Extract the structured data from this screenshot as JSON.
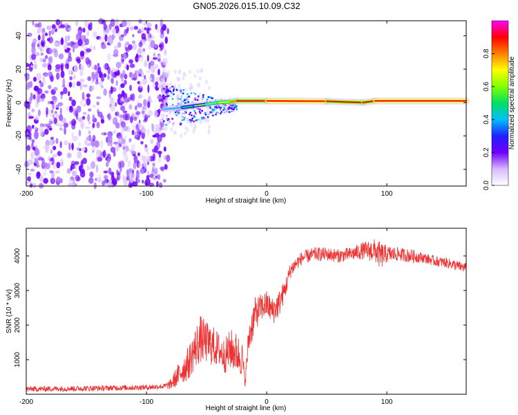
{
  "figure_title": "GN05.2026.015.10.09.C32",
  "chart_data": [
    {
      "type": "heatmap",
      "title": "GN05.2026.015.10.09.C32",
      "xlabel": "Height of straight line (km)",
      "ylabel": "Frequency (Hz)",
      "xlim": [
        -200,
        166
      ],
      "ylim": [
        -50,
        49
      ],
      "xticks": [
        -200,
        -100,
        0,
        100
      ],
      "xtick_labels": [
        "-200",
        "-100",
        "0",
        "100"
      ],
      "yticks": [
        -40,
        -20,
        0,
        20,
        40
      ],
      "ytick_labels": [
        "-40",
        "-20",
        "0",
        "20",
        "40"
      ],
      "noise_region_km": [
        -200,
        -82
      ],
      "turbulent_region_km": [
        -88,
        -25
      ],
      "carrier_line": [
        {
          "x": -85,
          "y": -4,
          "amp": 0.3
        },
        {
          "x": -70,
          "y": -3,
          "amp": 0.45
        },
        {
          "x": -60,
          "y": -2,
          "amp": 0.55
        },
        {
          "x": -50,
          "y": -1,
          "amp": 0.6
        },
        {
          "x": -40,
          "y": 0,
          "amp": 0.65
        },
        {
          "x": -30,
          "y": 0.5,
          "amp": 0.75
        },
        {
          "x": -25,
          "y": 1,
          "amp": 0.85
        },
        {
          "x": 0,
          "y": 1,
          "amp": 0.9
        },
        {
          "x": 50,
          "y": 0.8,
          "amp": 0.9
        },
        {
          "x": 80,
          "y": 0,
          "amp": 0.85
        },
        {
          "x": 90,
          "y": 1,
          "amp": 0.9
        },
        {
          "x": 166,
          "y": 1,
          "amp": 0.95
        }
      ],
      "colorbar": {
        "label": "Normalized spectral amplitude",
        "range": [
          0,
          1
        ],
        "ticks": [
          0.0,
          0.2,
          0.4,
          0.6,
          0.8
        ],
        "tick_labels": [
          "0.0",
          "0.2",
          "0.4",
          "0.6",
          "0.8"
        ],
        "colors": [
          "#ffffff",
          "#d8b8ff",
          "#7000ff",
          "#2020ff",
          "#00c0ff",
          "#00e060",
          "#80ff00",
          "#ffff00",
          "#ff8000",
          "#ff0000",
          "#ff00ff"
        ]
      }
    },
    {
      "type": "line",
      "xlabel": "Height of straight line (km)",
      "ylabel": "SNR (10 * v/v)",
      "xlim": [
        -200,
        166
      ],
      "ylim": [
        0,
        4800
      ],
      "xticks": [
        -200,
        -100,
        0,
        100
      ],
      "xtick_labels": [
        "-200",
        "-100",
        "0",
        "100"
      ],
      "yticks": [
        1000,
        2000,
        3000,
        4000
      ],
      "ytick_labels": [
        "1000",
        "2000",
        "3000",
        "4000"
      ],
      "series": [
        {
          "name": "SNR",
          "color": "#f03030",
          "x": [
            -200,
            -150,
            -100,
            -85,
            -80,
            -75,
            -70,
            -65,
            -60,
            -55,
            -50,
            -45,
            -40,
            -35,
            -30,
            -25,
            -20,
            -18,
            -15,
            -10,
            -5,
            0,
            5,
            10,
            15,
            20,
            25,
            30,
            40,
            50,
            60,
            70,
            80,
            90,
            95,
            100,
            110,
            120,
            130,
            140,
            150,
            160,
            166
          ],
          "y": [
            150,
            170,
            200,
            230,
            280,
            500,
            700,
            900,
            1300,
            1600,
            1500,
            1400,
            1300,
            1100,
            1300,
            1200,
            1000,
            300,
            1600,
            2300,
            2500,
            2600,
            2400,
            2600,
            3000,
            3600,
            3800,
            3950,
            4050,
            4050,
            4000,
            4050,
            4150,
            4150,
            4000,
            4050,
            4050,
            4000,
            3950,
            3850,
            3800,
            3700,
            3650
          ],
          "noise": [
            80,
            80,
            80,
            80,
            150,
            300,
            400,
            500,
            600,
            700,
            600,
            600,
            500,
            500,
            600,
            600,
            500,
            100,
            500,
            500,
            400,
            400,
            400,
            400,
            300,
            250,
            200,
            200,
            200,
            200,
            200,
            200,
            250,
            350,
            400,
            250,
            200,
            200,
            150,
            150,
            150,
            150,
            150
          ]
        }
      ]
    }
  ]
}
